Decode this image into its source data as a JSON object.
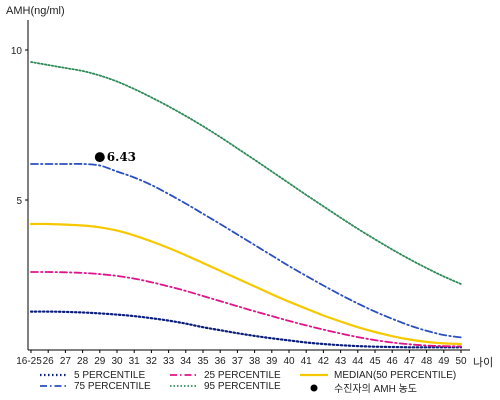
{
  "chart_data": {
    "type": "line",
    "title": "",
    "ylabel": "AMH(ng/ml)",
    "xlabel": "나이",
    "ylim": [
      0,
      11
    ],
    "yticks": [
      5,
      10
    ],
    "categories": [
      "16-25",
      "26",
      "27",
      "28",
      "29",
      "30",
      "31",
      "32",
      "33",
      "34",
      "35",
      "36",
      "37",
      "38",
      "39",
      "40",
      "41",
      "42",
      "43",
      "44",
      "45",
      "46",
      "47",
      "48",
      "49",
      "50"
    ],
    "series": [
      {
        "name": "5 PERCENTILE",
        "color": "#0b1e7a",
        "dash": "1.5,2.5",
        "width": 2.2,
        "values": [
          1.28,
          1.28,
          1.27,
          1.25,
          1.22,
          1.18,
          1.13,
          1.06,
          0.98,
          0.88,
          0.76,
          0.66,
          0.56,
          0.47,
          0.39,
          0.32,
          0.25,
          0.2,
          0.16,
          0.13,
          0.11,
          0.1,
          0.09,
          0.09,
          0.09,
          0.09
        ]
      },
      {
        "name": "25 PERCENTILE",
        "color": "#e0148a",
        "dash": "7,3,1.5,3",
        "width": 1.8,
        "values": [
          2.6,
          2.6,
          2.59,
          2.57,
          2.53,
          2.47,
          2.38,
          2.26,
          2.12,
          1.97,
          1.8,
          1.63,
          1.46,
          1.29,
          1.13,
          0.97,
          0.82,
          0.68,
          0.55,
          0.43,
          0.33,
          0.25,
          0.19,
          0.15,
          0.13,
          0.12
        ]
      },
      {
        "name": "MEDIAN(50 PERCENTILE)",
        "color": "#f5c800",
        "dash": "",
        "width": 2.2,
        "values": [
          4.2,
          4.2,
          4.18,
          4.15,
          4.09,
          3.98,
          3.82,
          3.62,
          3.4,
          3.16,
          2.9,
          2.64,
          2.38,
          2.12,
          1.86,
          1.61,
          1.38,
          1.15,
          0.95,
          0.76,
          0.6,
          0.46,
          0.35,
          0.27,
          0.22,
          0.2
        ]
      },
      {
        "name": "75 PERCENTILE",
        "color": "#2a4fc0",
        "dash": "7,3,1.5,3",
        "width": 1.8,
        "values": [
          6.2,
          6.2,
          6.2,
          6.2,
          6.15,
          5.95,
          5.75,
          5.5,
          5.2,
          4.88,
          4.54,
          4.2,
          3.85,
          3.5,
          3.15,
          2.8,
          2.47,
          2.15,
          1.84,
          1.55,
          1.28,
          1.04,
          0.82,
          0.64,
          0.5,
          0.42
        ]
      },
      {
        "name": "95 PERCENTILE",
        "color": "#2e8b57",
        "dash": "1.5,2",
        "width": 1.8,
        "values": [
          9.6,
          9.5,
          9.4,
          9.3,
          9.15,
          8.95,
          8.7,
          8.42,
          8.12,
          7.8,
          7.46,
          7.1,
          6.72,
          6.34,
          5.95,
          5.56,
          5.17,
          4.79,
          4.41,
          4.04,
          3.69,
          3.35,
          3.03,
          2.73,
          2.45,
          2.2
        ]
      }
    ],
    "marker": {
      "label": "수진자의 AMH 농도",
      "category": "29",
      "value": 6.43,
      "value_label": "6.43",
      "color": "#000000"
    },
    "grid": false,
    "legend_position": "bottom"
  }
}
